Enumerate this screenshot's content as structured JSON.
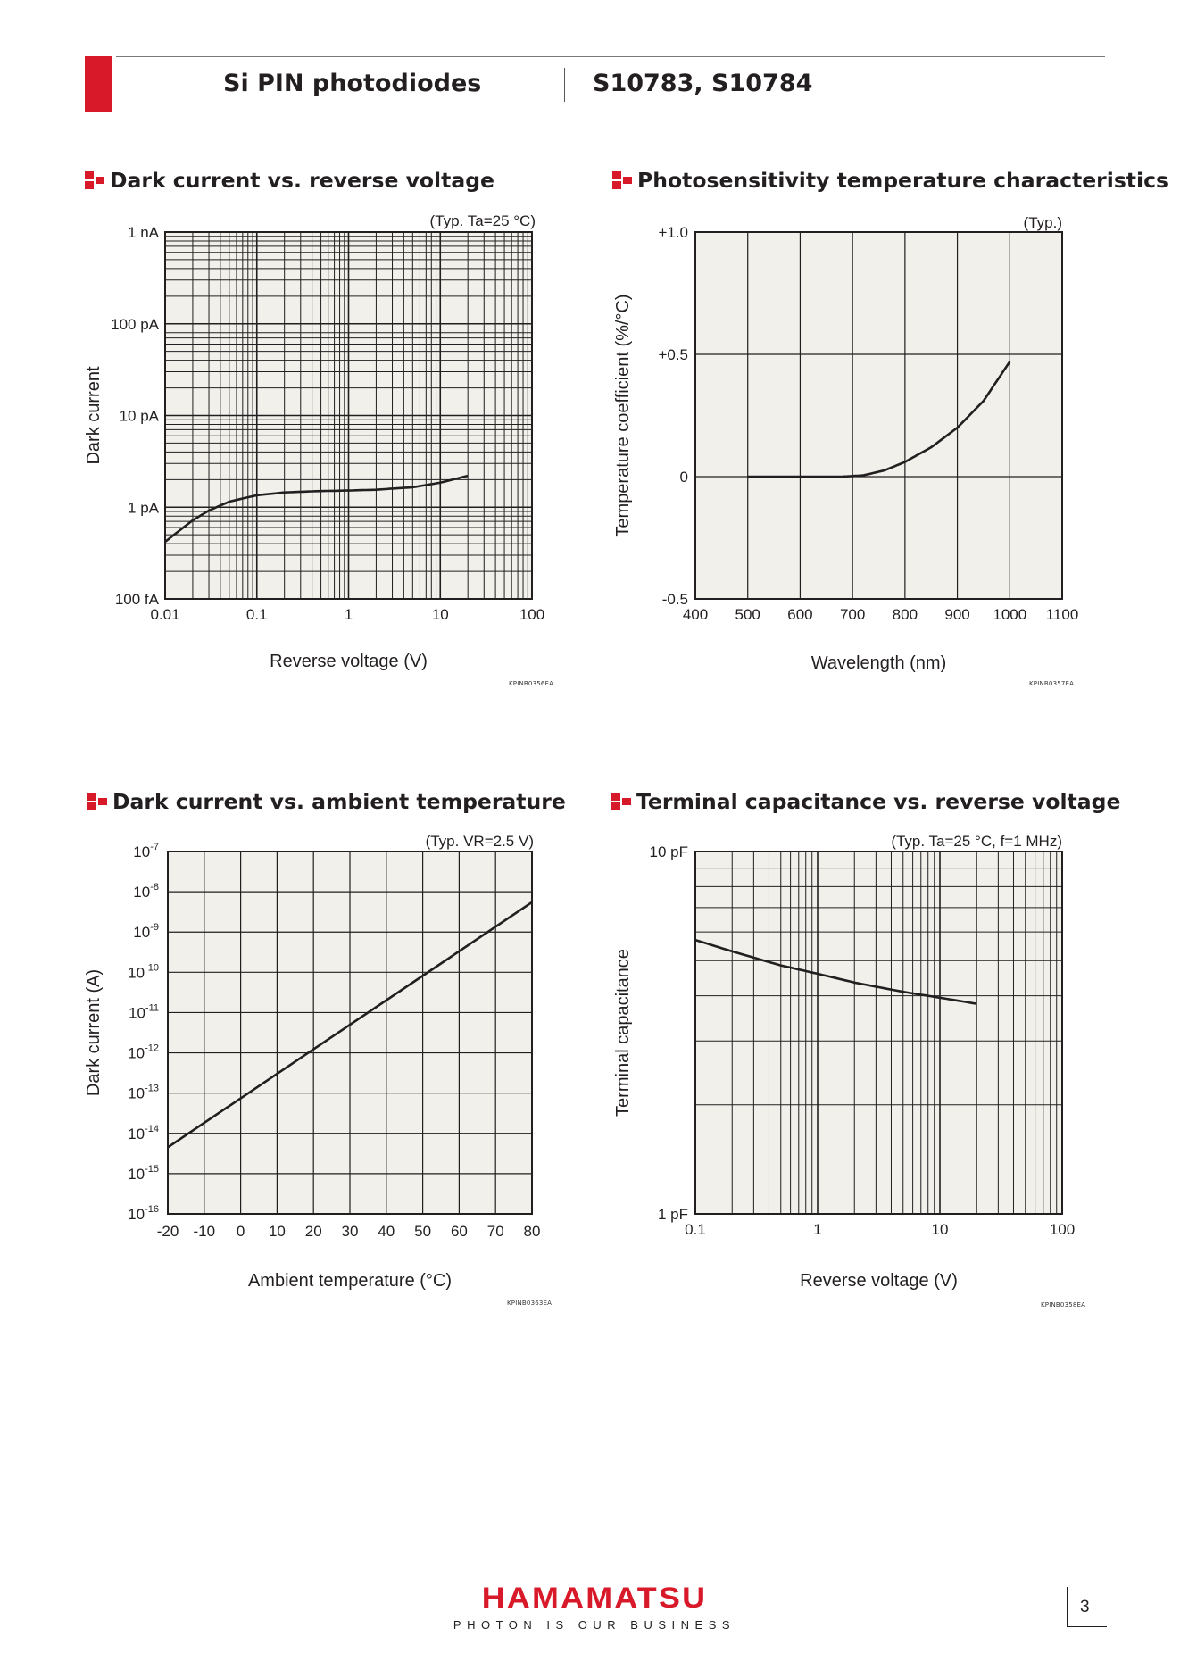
{
  "header": {
    "title_left": "Si PIN photodiodes",
    "title_right": "S10783, S10784",
    "accent_color": "#d7192a"
  },
  "charts": {
    "c1": {
      "section_title": "Dark current vs. reverse voltage",
      "condition": "(Typ. Ta=25 °C)",
      "code": "KPINB0356EA"
    },
    "c2": {
      "section_title": "Photosensitivity temperature characteristics",
      "condition": "(Typ.)",
      "code": "KPINB0357EA"
    },
    "c3": {
      "section_title": "Dark current vs. ambient temperature",
      "condition": "(Typ. VR=2.5 V)",
      "code": "KPINB0363EA"
    },
    "c4": {
      "section_title": "Terminal capacitance vs. reverse voltage",
      "condition": "(Typ. Ta=25 °C, f=1 MHz)",
      "code": "KPINB0358EA"
    }
  },
  "chart_data": [
    {
      "type": "line",
      "title": "Dark current vs. reverse voltage",
      "annotation": "(Typ. Ta=25 °C)",
      "xlabel": "Reverse voltage (V)",
      "ylabel": "Dark current",
      "x_scale": "log",
      "y_scale": "log",
      "xlim": [
        0.01,
        100
      ],
      "ylim_A": [
        1e-13,
        1e-09
      ],
      "x_ticks": [
        0.01,
        0.1,
        1,
        10,
        100
      ],
      "x_tick_labels": [
        "0.01",
        "0.1",
        "1",
        "10",
        "100"
      ],
      "y_ticks": [
        1e-13,
        1e-12,
        1e-11,
        1e-10,
        1e-09
      ],
      "y_tick_labels": [
        "100 fA",
        "1 pA",
        "10 pA",
        "100 pA",
        "1 nA"
      ],
      "grid": true,
      "series": [
        {
          "x": [
            0.01,
            0.02,
            0.03,
            0.05,
            0.1,
            0.2,
            0.5,
            1,
            2,
            5,
            10,
            20
          ],
          "y": [
            4.2e-13,
            7.2e-13,
            9.2e-13,
            1.15e-12,
            1.35e-12,
            1.45e-12,
            1.5e-12,
            1.52e-12,
            1.55e-12,
            1.65e-12,
            1.85e-12,
            2.2e-12
          ]
        }
      ]
    },
    {
      "type": "line",
      "title": "Photosensitivity temperature characteristics",
      "annotation": "(Typ.)",
      "xlabel": "Wavelength (nm)",
      "ylabel": "Temperature coefficient (%/°C)",
      "xlim": [
        400,
        1100
      ],
      "ylim": [
        -0.5,
        1.0
      ],
      "x_ticks": [
        400,
        500,
        600,
        700,
        800,
        900,
        1000,
        1100
      ],
      "x_tick_labels": [
        "400",
        "500",
        "600",
        "700",
        "800",
        "900",
        "1000",
        "1100"
      ],
      "y_ticks": [
        -0.5,
        0,
        0.5,
        1.0
      ],
      "y_tick_labels": [
        "-0.5",
        "0",
        "+0.5",
        "+1.0"
      ],
      "grid": true,
      "series": [
        {
          "x": [
            500,
            600,
            680,
            720,
            760,
            800,
            850,
            900,
            950,
            1000
          ],
          "y": [
            0,
            0,
            0,
            0.005,
            0.025,
            0.06,
            0.12,
            0.2,
            0.31,
            0.47
          ]
        }
      ]
    },
    {
      "type": "line",
      "title": "Dark current vs. ambient temperature",
      "annotation": "(Typ. VR=2.5 V)",
      "xlabel": "Ambient temperature (°C)",
      "ylabel": "Dark current (A)",
      "y_scale": "log",
      "xlim": [
        -20,
        80
      ],
      "ylim": [
        1e-16,
        1e-07
      ],
      "x_ticks": [
        -20,
        -10,
        0,
        10,
        20,
        30,
        40,
        50,
        60,
        70,
        80
      ],
      "x_tick_labels": [
        "-20",
        "-10",
        "0",
        "10",
        "20",
        "30",
        "40",
        "50",
        "60",
        "70",
        "80"
      ],
      "y_tick_labels": [
        "10-16",
        "10-15",
        "10-14",
        "10-13",
        "10-12",
        "10-11",
        "10-10",
        "10-9",
        "10-8",
        "10-7"
      ],
      "y_tick_base": "10",
      "y_tick_exponents": [
        "-16",
        "-15",
        "-14",
        "-13",
        "-12",
        "-11",
        "-10",
        "-9",
        "-8",
        "-7"
      ],
      "grid": true,
      "series": [
        {
          "x": [
            -20,
            80
          ],
          "y": [
            4.5e-15,
            5.5e-09
          ]
        }
      ]
    },
    {
      "type": "line",
      "title": "Terminal capacitance vs. reverse voltage",
      "annotation": "(Typ. Ta=25 °C, f=1 MHz)",
      "xlabel": "Reverse voltage (V)",
      "ylabel": "Terminal capacitance",
      "x_scale": "log",
      "y_scale": "log",
      "xlim": [
        0.1,
        100
      ],
      "ylim_pF": [
        1,
        10
      ],
      "x_ticks": [
        0.1,
        1,
        10,
        100
      ],
      "x_tick_labels": [
        "0.1",
        "1",
        "10",
        "100"
      ],
      "y_ticks": [
        1,
        10
      ],
      "y_tick_labels": [
        "1 pF",
        "10 pF"
      ],
      "grid": true,
      "series": [
        {
          "x": [
            0.1,
            0.2,
            0.5,
            1,
            2,
            5,
            10,
            20
          ],
          "y": [
            5.7,
            5.3,
            4.85,
            4.6,
            4.35,
            4.1,
            3.95,
            3.8
          ]
        }
      ]
    }
  ],
  "footer": {
    "logo_text": "HAMAMATSU",
    "tagline": "PHOTON IS OUR BUSINESS",
    "page_number": "3"
  }
}
